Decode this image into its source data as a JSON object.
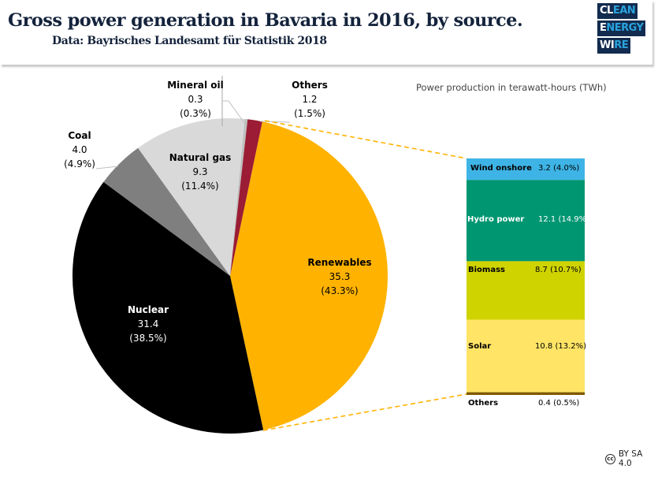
{
  "header": {
    "title": "Gross power generation in Bavaria in 2016, by source.",
    "subtitle": "Data: Bayrisches Landesamt für Statistik 2018",
    "logo": [
      {
        "white": "CL",
        "blue": "EAN"
      },
      {
        "white": "E",
        "blue": "NERGY"
      },
      {
        "white": "WI",
        "blue": "RE"
      }
    ]
  },
  "colors": {
    "title": "#14233c",
    "logo_bg": "#122b4f",
    "logo_accent": "#29a3dd"
  },
  "chart_data": {
    "type": "pie",
    "title": "Gross power generation in Bavaria in 2016, by source.",
    "unit_note": "Power production in terawatt-hours (TWh)",
    "slices": [
      {
        "name": "Renewables",
        "value": 35.3,
        "value_label": "35.3",
        "percent_label": "(43.3%)",
        "percent": 43.3,
        "color": "#ffb300",
        "text_color": "#1a1a1a"
      },
      {
        "name": "Nuclear",
        "value": 31.4,
        "value_label": "31.4",
        "percent_label": "(38.5%)",
        "percent": 38.5,
        "color": "#000000",
        "text_color": "#ffffff"
      },
      {
        "name": "Coal",
        "value": 4.0,
        "value_label": "4.0",
        "percent_label": "(4.9%)",
        "percent": 4.9,
        "color": "#7f7f7f",
        "text_color": "#1a1a1a"
      },
      {
        "name": "Natural gas",
        "value": 9.3,
        "value_label": "9.3",
        "percent_label": "(11.4%)",
        "percent": 11.4,
        "color": "#d9d9d9",
        "text_color": "#1a1a1a"
      },
      {
        "name": "Mineral oil",
        "value": 0.3,
        "value_label": "0.3",
        "percent_label": "(0.3%)",
        "percent": 0.3,
        "color": "#bfbfbf",
        "text_color": "#1a1a1a"
      },
      {
        "name": "Others",
        "value": 1.2,
        "value_label": "1.2",
        "percent_label": "(1.5%)",
        "percent": 1.5,
        "color": "#9b1c34",
        "text_color": "#1a1a1a"
      }
    ],
    "breakdown": {
      "of": "Renewables",
      "type": "stacked-bar",
      "segments": [
        {
          "name": "Wind onshore",
          "value": 3.2,
          "value_label": "3.2  (4.0%)",
          "percent": 4.0,
          "color": "#3eb4e6",
          "text_color": "#111111"
        },
        {
          "name": "Hydro power",
          "value": 12.1,
          "value_label": "12.1  (14.9%)",
          "percent": 14.9,
          "color": "#009672",
          "text_color": "#ffffff"
        },
        {
          "name": "Biomass",
          "value": 8.7,
          "value_label": "8.7  (10.7%)",
          "percent": 10.7,
          "color": "#cfd300",
          "text_color": "#111111"
        },
        {
          "name": "Solar",
          "value": 10.8,
          "value_label": "10.8  (13.2%)",
          "percent": 13.2,
          "color": "#ffe466",
          "text_color": "#111111"
        },
        {
          "name": "Others",
          "value": 0.4,
          "value_label": "0.4  (0.5%)",
          "percent": 0.5,
          "color": "#7f5a00",
          "text_color": "#111111"
        }
      ]
    }
  },
  "footer": {
    "license_icon": "cc-icon",
    "license_icon_text": "cc",
    "license_text": "BY SA 4.0"
  }
}
